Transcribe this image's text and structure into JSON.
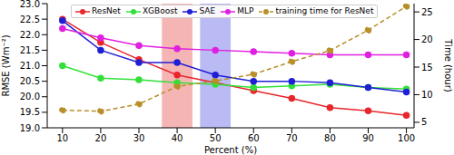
{
  "chart_data": {
    "type": "line",
    "x_label": "Percent (%)",
    "y_label": "RMSE (Wm⁻²)",
    "y2_label": "Time (hour)",
    "x": [
      10,
      20,
      30,
      40,
      50,
      60,
      70,
      80,
      90,
      100
    ],
    "xlim": [
      6,
      102
    ],
    "xticks": [
      10,
      20,
      30,
      40,
      50,
      60,
      70,
      80,
      90,
      100
    ],
    "ylim": [
      19,
      23
    ],
    "yticks": [
      {
        "value": 19,
        "label": "19.0"
      },
      {
        "value": 19.5,
        "label": "19.5"
      },
      {
        "value": 20,
        "label": "20.0"
      },
      {
        "value": 20.5,
        "label": "20.5"
      },
      {
        "value": 21,
        "label": "21.0"
      },
      {
        "value": 21.5,
        "label": "21.5"
      },
      {
        "value": 22,
        "label": "22.0"
      },
      {
        "value": 22.5,
        "label": "22.5"
      },
      {
        "value": 23,
        "label": "23.0"
      }
    ],
    "y2lim": [
      4,
      26.5
    ],
    "y2ticks": [
      5,
      10,
      15,
      20,
      25
    ],
    "grid": false,
    "legend": "top",
    "highlight_ranges": [
      {
        "x": [
          36,
          44
        ],
        "color": "#f4a3a3"
      },
      {
        "x": [
          46,
          54
        ],
        "color": "#a9a9f2"
      }
    ],
    "series": [
      {
        "name": "ResNet",
        "color": "#e8262b",
        "marker": "circle",
        "line_style": "solid",
        "values": [
          22.5,
          21.75,
          21.2,
          20.7,
          20.45,
          20.2,
          19.95,
          19.65,
          19.55,
          19.4
        ]
      },
      {
        "name": "XGBoost",
        "color": "#33e03a",
        "marker": "circle",
        "line_style": "solid",
        "values": [
          21.0,
          20.6,
          20.55,
          20.45,
          20.4,
          20.3,
          20.35,
          20.4,
          20.3,
          20.25
        ]
      },
      {
        "name": "SAE",
        "color": "#1f1fd6",
        "marker": "circle",
        "line_style": "solid",
        "values": [
          22.45,
          21.5,
          21.1,
          21.1,
          20.7,
          20.5,
          20.5,
          20.45,
          20.3,
          20.15
        ]
      },
      {
        "name": "MLP",
        "color": "#e020e0",
        "marker": "circle",
        "line_style": "solid",
        "values": [
          22.2,
          21.9,
          21.65,
          21.55,
          21.5,
          21.45,
          21.4,
          21.35,
          21.35,
          21.35
        ]
      },
      {
        "name": "training time for ResNet",
        "color": "#b8902a",
        "marker": "circle",
        "line_style": "dashed",
        "axis": "y2",
        "values": [
          7.2,
          7.0,
          8.3,
          11.5,
          12.5,
          13.7,
          16.0,
          18.0,
          21.7,
          26.0
        ]
      }
    ]
  }
}
